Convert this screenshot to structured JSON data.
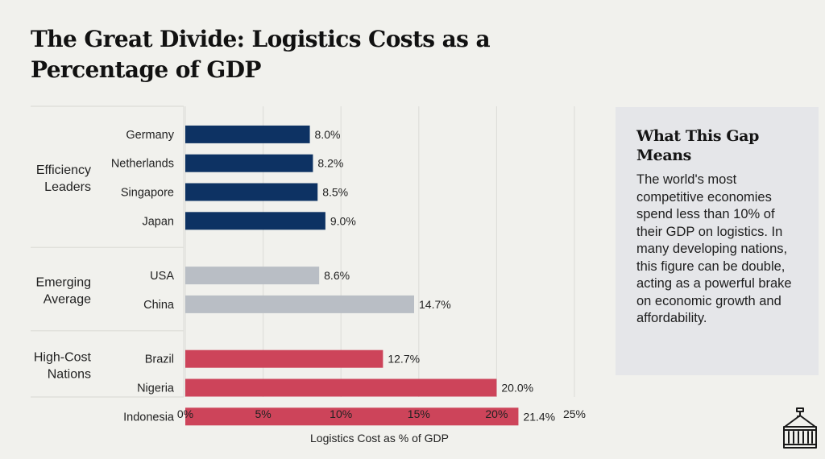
{
  "title": "The Great Divide: Logistics Costs as a Percentage of GDP",
  "side_panel": {
    "heading": "What This Gap Means",
    "body": "The world's most competitive economies spend less than 10% of their GDP on logistics. In many developing nations, this figure can be double, acting as a powerful brake on economic growth and affordability."
  },
  "icon": "shipping-container-icon",
  "chart_data": {
    "type": "bar",
    "orientation": "horizontal",
    "title": "The Great Divide: Logistics Costs as a Percentage of GDP",
    "xlabel": "Logistics Cost as % of GDP",
    "ylabel": "",
    "xlim": [
      0,
      25
    ],
    "x_ticks": [
      0,
      5,
      10,
      15,
      20,
      25
    ],
    "x_tick_labels": [
      "0%",
      "5%",
      "10%",
      "15%",
      "20%",
      "25%"
    ],
    "grid": "vertical",
    "value_suffix": "%",
    "groups": [
      {
        "name": "Efficiency Leaders",
        "label_lines": [
          "Efficiency",
          "Leaders"
        ],
        "color": "#0d3263",
        "categories": [
          "Germany",
          "Netherlands",
          "Singapore",
          "Japan"
        ],
        "values": [
          8.0,
          8.2,
          8.5,
          9.0
        ],
        "value_labels": [
          "8.0%",
          "8.2%",
          "8.5%",
          "9.0%"
        ]
      },
      {
        "name": "Emerging Average",
        "label_lines": [
          "Emerging",
          "Average"
        ],
        "color": "#b9bec5",
        "categories": [
          "USA",
          "China"
        ],
        "values": [
          8.6,
          14.7
        ],
        "value_labels": [
          "8.6%",
          "14.7%"
        ]
      },
      {
        "name": "High-Cost Nations",
        "label_lines": [
          "High-Cost",
          "Nations"
        ],
        "color": "#cd445a",
        "categories": [
          "Brazil",
          "Nigeria",
          "Indonesia"
        ],
        "values": [
          12.7,
          20.0,
          21.4
        ],
        "value_labels": [
          "12.7%",
          "20.0%",
          "21.4%"
        ]
      }
    ]
  }
}
